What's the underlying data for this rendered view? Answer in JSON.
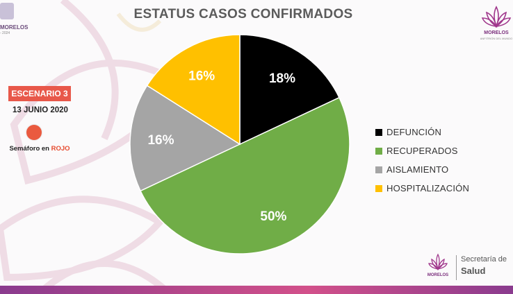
{
  "title": "ESTATUS CASOS CONFIRMADOS",
  "branding": {
    "left_logo_name": "MORELOS",
    "left_logo_sub": "- 2024",
    "right_logo_name": "MORELOS",
    "right_logo_sub": "ANFITRIÓN DEL MUNDO",
    "footer_logo_name": "MORELOS",
    "footer_secretaria": "Secretaría de",
    "footer_salud": "Salud"
  },
  "sidebar": {
    "scenario": "ESCENARIO 3",
    "date": "13 JUNIO 2020",
    "semaforo_prefix": "Semáforo en ",
    "semaforo_color": "ROJO"
  },
  "chart_data": {
    "type": "pie",
    "title": "ESTATUS CASOS CONFIRMADOS",
    "slices": [
      {
        "label": "DEFUNCIÓN",
        "value": 18,
        "display": "18%",
        "color": "#000000",
        "text_color": "#ffffff"
      },
      {
        "label": "RECUPERADOS",
        "value": 50,
        "display": "50%",
        "color": "#70ad47",
        "text_color": "#ffffff"
      },
      {
        "label": "AISLAMIENTO",
        "value": 16,
        "display": "16%",
        "color": "#a5a5a5",
        "text_color": "#ffffff"
      },
      {
        "label": "HOSPITALIZACIÓN",
        "value": 16,
        "display": "16%",
        "color": "#ffc000",
        "text_color": "#ffffff"
      }
    ],
    "legend_position": "right"
  },
  "colors": {
    "scenario_badge": "#e8584a",
    "semaforo": "#ea5a3f",
    "semaforo_text": "#e64a2e",
    "accent_purple": "#8a3b8e"
  }
}
